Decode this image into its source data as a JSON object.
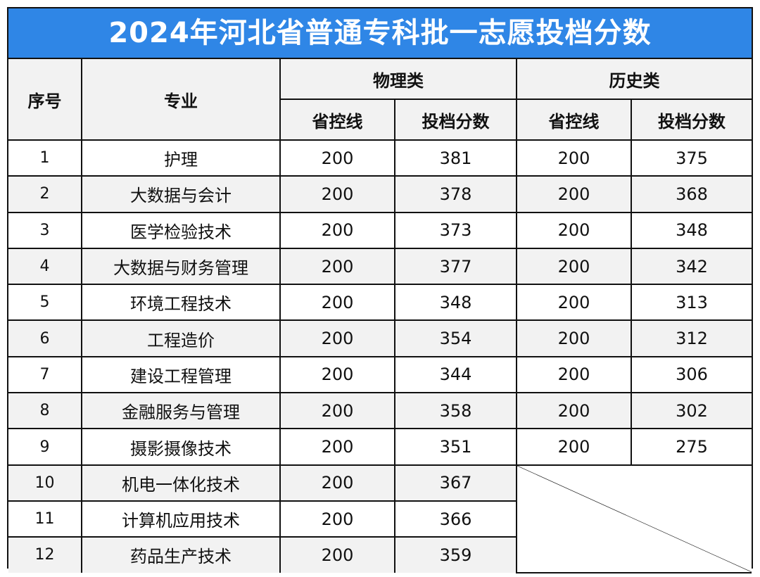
{
  "title": "2024年河北省普通专科批一志愿投档分数",
  "headers": {
    "index": "序号",
    "major": "专业",
    "physics": "物理类",
    "history": "历史类",
    "control_line": "省控线",
    "admission_score": "投档分数"
  },
  "rows": [
    {
      "index": "1",
      "major": "护理",
      "phys_line": "200",
      "phys_score": "381",
      "hist_line": "200",
      "hist_score": "375"
    },
    {
      "index": "2",
      "major": "大数据与会计",
      "phys_line": "200",
      "phys_score": "378",
      "hist_line": "200",
      "hist_score": "368"
    },
    {
      "index": "3",
      "major": "医学检验技术",
      "phys_line": "200",
      "phys_score": "373",
      "hist_line": "200",
      "hist_score": "348"
    },
    {
      "index": "4",
      "major": "大数据与财务管理",
      "phys_line": "200",
      "phys_score": "377",
      "hist_line": "200",
      "hist_score": "342"
    },
    {
      "index": "5",
      "major": "环境工程技术",
      "phys_line": "200",
      "phys_score": "348",
      "hist_line": "200",
      "hist_score": "313"
    },
    {
      "index": "6",
      "major": "工程造价",
      "phys_line": "200",
      "phys_score": "354",
      "hist_line": "200",
      "hist_score": "312"
    },
    {
      "index": "7",
      "major": "建设工程管理",
      "phys_line": "200",
      "phys_score": "344",
      "hist_line": "200",
      "hist_score": "306"
    },
    {
      "index": "8",
      "major": "金融服务与管理",
      "phys_line": "200",
      "phys_score": "358",
      "hist_line": "200",
      "hist_score": "302"
    },
    {
      "index": "9",
      "major": "摄影摄像技术",
      "phys_line": "200",
      "phys_score": "351",
      "hist_line": "200",
      "hist_score": "275"
    },
    {
      "index": "10",
      "major": "机电一体化技术",
      "phys_line": "200",
      "phys_score": "367"
    },
    {
      "index": "11",
      "major": "计算机应用技术",
      "phys_line": "200",
      "phys_score": "366"
    },
    {
      "index": "12",
      "major": "药品生产技术",
      "phys_line": "200",
      "phys_score": "359"
    }
  ]
}
